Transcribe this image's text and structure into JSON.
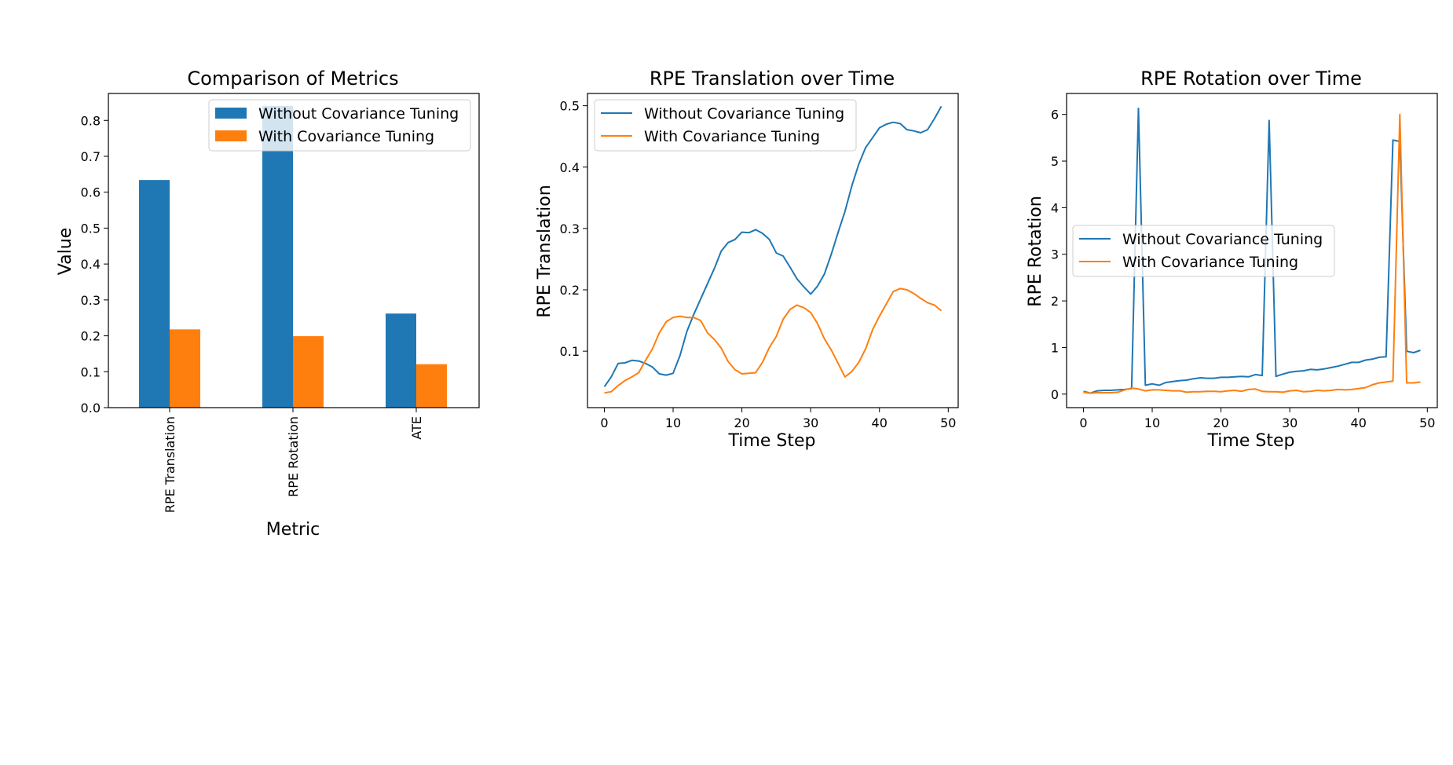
{
  "colors": {
    "without": "#1f77b4",
    "with": "#ff7f0e"
  },
  "chart_data": [
    {
      "type": "bar",
      "title": "Comparison of Metrics",
      "xlabel": "Metric",
      "ylabel": "Value",
      "categories": [
        "RPE Translation",
        "RPE Rotation",
        "ATE"
      ],
      "series": [
        {
          "name": "Without Covariance Tuning",
          "values": [
            0.634,
            0.84,
            0.262
          ]
        },
        {
          "name": "With Covariance Tuning",
          "values": [
            0.218,
            0.199,
            0.121
          ]
        }
      ],
      "ylim": [
        0,
        0.875
      ],
      "yticks": [
        0.0,
        0.1,
        0.2,
        0.3,
        0.4,
        0.5,
        0.6,
        0.7,
        0.8
      ],
      "ytick_labels": [
        "0.0",
        "0.1",
        "0.2",
        "0.3",
        "0.4",
        "0.5",
        "0.6",
        "0.7",
        "0.8"
      ],
      "legend": "upper right",
      "grid": false
    },
    {
      "type": "line",
      "title": "RPE Translation over Time",
      "xlabel": "Time Step",
      "ylabel": "RPE Translation",
      "xlim": [
        -2.45,
        51.45
      ],
      "ylim": [
        0.008,
        0.52
      ],
      "xticks": [
        0,
        10,
        20,
        30,
        40,
        50
      ],
      "xtick_labels": [
        "0",
        "10",
        "20",
        "30",
        "40",
        "50"
      ],
      "yticks": [
        0.1,
        0.2,
        0.3,
        0.4,
        0.5
      ],
      "ytick_labels": [
        "0.1",
        "0.2",
        "0.3",
        "0.4",
        "0.5"
      ],
      "legend": "upper left",
      "grid": false,
      "series": [
        {
          "name": "Without Covariance Tuning",
          "values": [
            0.042,
            0.058,
            0.08,
            0.081,
            0.085,
            0.084,
            0.08,
            0.074,
            0.063,
            0.061,
            0.064,
            0.093,
            0.132,
            0.16,
            0.185,
            0.21,
            0.235,
            0.263,
            0.277,
            0.282,
            0.294,
            0.293,
            0.298,
            0.292,
            0.282,
            0.26,
            0.255,
            0.237,
            0.218,
            0.205,
            0.193,
            0.206,
            0.226,
            0.258,
            0.294,
            0.328,
            0.37,
            0.405,
            0.432,
            0.448,
            0.464,
            0.47,
            0.473,
            0.471,
            0.461,
            0.459,
            0.456,
            0.461,
            0.479,
            0.499
          ]
        },
        {
          "name": "With Covariance Tuning",
          "values": [
            0.032,
            0.034,
            0.044,
            0.052,
            0.058,
            0.065,
            0.085,
            0.104,
            0.13,
            0.148,
            0.155,
            0.157,
            0.155,
            0.155,
            0.15,
            0.13,
            0.119,
            0.105,
            0.083,
            0.07,
            0.063,
            0.064,
            0.065,
            0.082,
            0.106,
            0.124,
            0.152,
            0.168,
            0.175,
            0.171,
            0.163,
            0.145,
            0.12,
            0.102,
            0.08,
            0.058,
            0.067,
            0.082,
            0.104,
            0.135,
            0.157,
            0.177,
            0.197,
            0.202,
            0.2,
            0.194,
            0.186,
            0.179,
            0.175,
            0.166
          ]
        }
      ]
    },
    {
      "type": "line",
      "title": "RPE Rotation over Time",
      "xlabel": "Time Step",
      "ylabel": "RPE Rotation",
      "xlim": [
        -2.45,
        51.45
      ],
      "ylim": [
        -0.29,
        6.45
      ],
      "xticks": [
        0,
        10,
        20,
        30,
        40,
        50
      ],
      "xtick_labels": [
        "0",
        "10",
        "20",
        "30",
        "40",
        "50"
      ],
      "yticks": [
        0,
        1,
        2,
        3,
        4,
        5,
        6
      ],
      "ytick_labels": [
        "0",
        "1",
        "2",
        "3",
        "4",
        "5",
        "6"
      ],
      "legend": "center left",
      "grid": false,
      "series": [
        {
          "name": "Without Covariance Tuning",
          "values": [
            0.06,
            0.02,
            0.07,
            0.08,
            0.08,
            0.09,
            0.1,
            0.12,
            6.13,
            0.19,
            0.22,
            0.19,
            0.25,
            0.27,
            0.29,
            0.3,
            0.33,
            0.35,
            0.34,
            0.34,
            0.36,
            0.36,
            0.37,
            0.38,
            0.37,
            0.42,
            0.4,
            5.87,
            0.38,
            0.43,
            0.47,
            0.49,
            0.5,
            0.53,
            0.52,
            0.54,
            0.57,
            0.6,
            0.64,
            0.68,
            0.68,
            0.73,
            0.75,
            0.79,
            0.8,
            5.45,
            5.42,
            0.92,
            0.89,
            0.94
          ]
        },
        {
          "name": "With Covariance Tuning",
          "values": [
            0.04,
            0.02,
            0.03,
            0.03,
            0.03,
            0.04,
            0.09,
            0.13,
            0.11,
            0.07,
            0.09,
            0.09,
            0.08,
            0.07,
            0.07,
            0.04,
            0.05,
            0.05,
            0.06,
            0.06,
            0.05,
            0.07,
            0.08,
            0.06,
            0.1,
            0.11,
            0.06,
            0.05,
            0.05,
            0.04,
            0.07,
            0.08,
            0.05,
            0.06,
            0.08,
            0.07,
            0.08,
            0.1,
            0.09,
            0.1,
            0.12,
            0.14,
            0.2,
            0.24,
            0.26,
            0.28,
            6.0,
            0.24,
            0.24,
            0.26
          ]
        }
      ]
    }
  ]
}
